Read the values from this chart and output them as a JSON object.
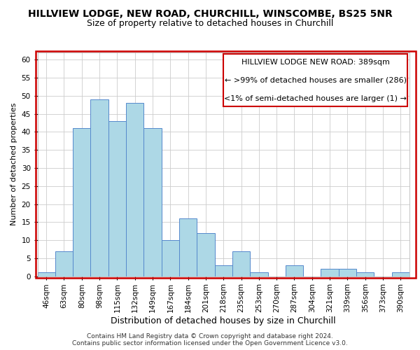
{
  "title": "HILLVIEW LODGE, NEW ROAD, CHURCHILL, WINSCOMBE, BS25 5NR",
  "subtitle": "Size of property relative to detached houses in Churchill",
  "xlabel": "Distribution of detached houses by size in Churchill",
  "ylabel": "Number of detached properties",
  "bin_labels": [
    "46sqm",
    "63sqm",
    "80sqm",
    "98sqm",
    "115sqm",
    "132sqm",
    "149sqm",
    "167sqm",
    "184sqm",
    "201sqm",
    "218sqm",
    "235sqm",
    "253sqm",
    "270sqm",
    "287sqm",
    "304sqm",
    "321sqm",
    "339sqm",
    "356sqm",
    "373sqm",
    "390sqm"
  ],
  "bar_heights": [
    1,
    7,
    41,
    49,
    43,
    48,
    41,
    10,
    16,
    12,
    3,
    7,
    1,
    0,
    3,
    0,
    2,
    2,
    1,
    0,
    1
  ],
  "bar_color": "#add8e6",
  "bar_edge_color": "#5588cc",
  "ylim": [
    0,
    62
  ],
  "yticks": [
    0,
    5,
    10,
    15,
    20,
    25,
    30,
    35,
    40,
    45,
    50,
    55,
    60
  ],
  "ann_line1": "HILLVIEW LODGE NEW ROAD: 389sqm",
  "ann_line2": "← >99% of detached houses are smaller (286)",
  "ann_line3": "<1% of semi-detached houses are larger (1) →",
  "annotation_box_color": "#ffffff",
  "annotation_box_edge": "#cc0000",
  "red_border_color": "#cc0000",
  "footer_line1": "Contains HM Land Registry data © Crown copyright and database right 2024.",
  "footer_line2": "Contains public sector information licensed under the Open Government Licence v3.0.",
  "bg_color": "#ffffff",
  "grid_color": "#cccccc",
  "title_fontsize": 10,
  "subtitle_fontsize": 9,
  "xlabel_fontsize": 9,
  "ylabel_fontsize": 8,
  "tick_fontsize": 7.5,
  "annotation_fontsize": 8,
  "footer_fontsize": 6.5
}
